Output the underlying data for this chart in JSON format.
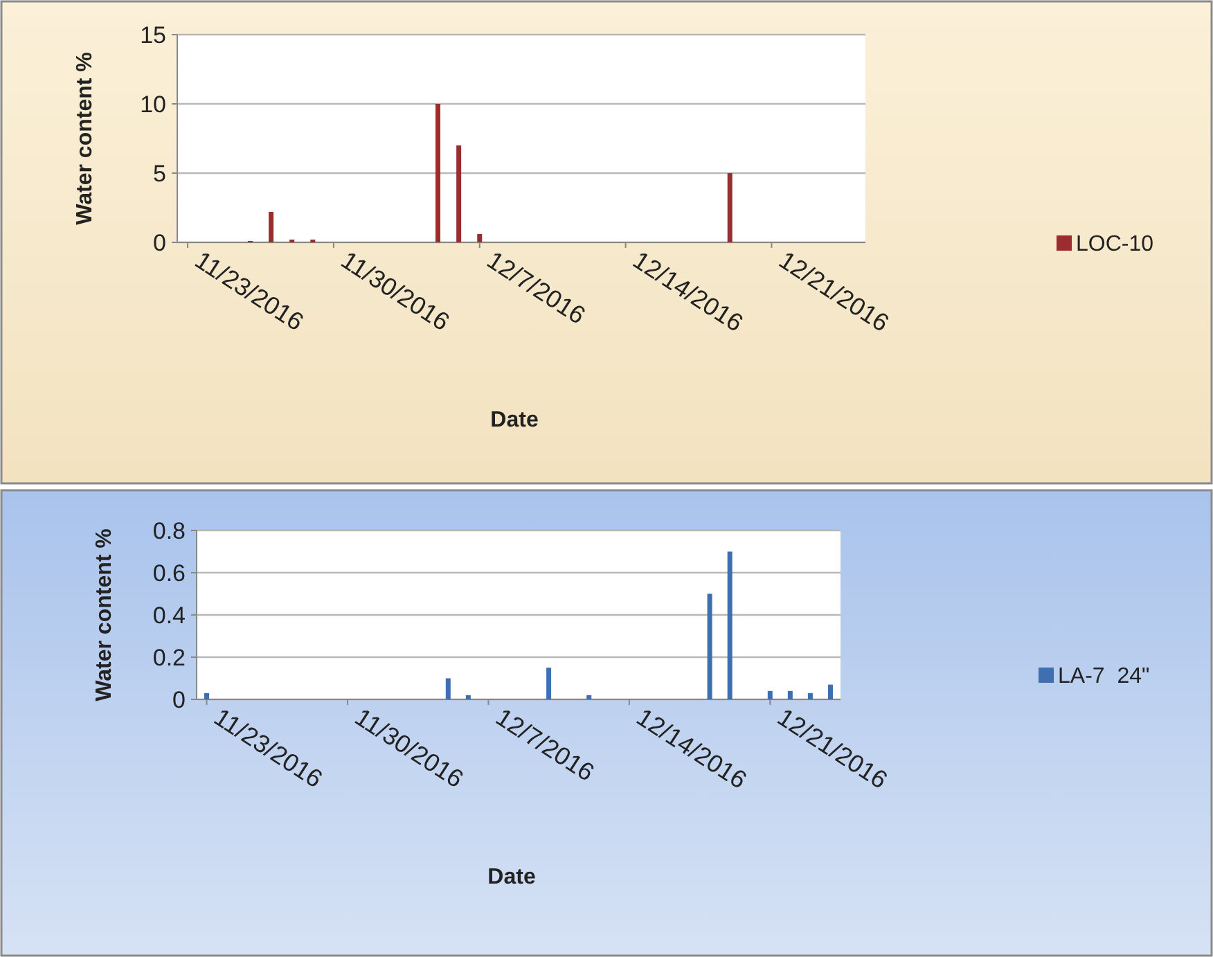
{
  "chart_data": [
    {
      "type": "bar",
      "xlabel": "Date",
      "ylabel": "Water content %",
      "x": [
        "2016-11-26",
        "2016-11-27",
        "2016-11-28",
        "2016-11-29",
        "2016-12-05",
        "2016-12-06",
        "2016-12-07",
        "2016-12-19"
      ],
      "series": [
        {
          "name": "LOC-10",
          "color": "#9b2d30",
          "values": [
            0.1,
            2.2,
            0.2,
            0.2,
            10,
            7,
            0.6,
            5
          ]
        }
      ],
      "xlim": [
        "2016-11-22T12:00",
        "2016-12-25T12:00"
      ],
      "xticks": [
        {
          "value": "2016-11-23",
          "label": "11/23/2016"
        },
        {
          "value": "2016-11-30",
          "label": "11/30/2016"
        },
        {
          "value": "2016-12-07",
          "label": "12/7/2016"
        },
        {
          "value": "2016-12-14",
          "label": "12/14/2016"
        },
        {
          "value": "2016-12-21",
          "label": "12/21/2016"
        }
      ],
      "ylim": [
        0,
        15
      ],
      "yticks": [
        0,
        5,
        10,
        15
      ],
      "grid": "y",
      "legend": "right"
    },
    {
      "type": "bar",
      "xlabel": "Date",
      "ylabel": "Water content %",
      "x": [
        "2016-11-23",
        "2016-11-24",
        "2016-11-25",
        "2016-11-26",
        "2016-11-27",
        "2016-11-28",
        "2016-11-29",
        "2016-11-30",
        "2016-12-02",
        "2016-12-03",
        "2016-12-04",
        "2016-12-05",
        "2016-12-06",
        "2016-12-07",
        "2016-12-08",
        "2016-12-09",
        "2016-12-10",
        "2016-12-11",
        "2016-12-12",
        "2016-12-13",
        "2016-12-14",
        "2016-12-15",
        "2016-12-16",
        "2016-12-17",
        "2016-12-18",
        "2016-12-19",
        "2016-12-20",
        "2016-12-21",
        "2016-12-22",
        "2016-12-23",
        "2016-12-24"
      ],
      "series": [
        {
          "name": "LA-7  24\"",
          "color": "#3f6fb0",
          "values": [
            0.03,
            0,
            0,
            0,
            0,
            0,
            0,
            0,
            0,
            0,
            0,
            0.1,
            0.02,
            0,
            0,
            0,
            0.15,
            0,
            0.02,
            0,
            0,
            0,
            0,
            0,
            0.5,
            0.7,
            0,
            0.04,
            0.04,
            0.03,
            0.07
          ]
        }
      ],
      "xlim": [
        "2016-11-22T12:00",
        "2016-12-24T12:00"
      ],
      "xticks": [
        {
          "value": "2016-11-23",
          "label": "11/23/2016"
        },
        {
          "value": "2016-11-30",
          "label": "11/30/2016"
        },
        {
          "value": "2016-12-07",
          "label": "12/7/2016"
        },
        {
          "value": "2016-12-14",
          "label": "12/14/2016"
        },
        {
          "value": "2016-12-21",
          "label": "12/21/2016"
        }
      ],
      "ylim": [
        0,
        0.8
      ],
      "yticks": [
        0,
        0.2,
        0.4,
        0.6,
        0.8
      ],
      "grid": "y",
      "legend": "right"
    }
  ]
}
